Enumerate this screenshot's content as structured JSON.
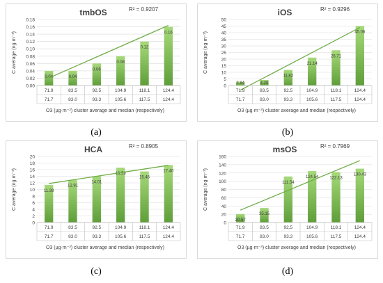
{
  "colors": {
    "bar_top": "#a6d97a",
    "bar_bottom": "#5f9e3a",
    "trend": "#70ad47",
    "grid": "#d9d9d9",
    "text": "#404040"
  },
  "captions": [
    "(a)",
    "(b)",
    "(c)",
    "(d)"
  ],
  "chart_data": [
    {
      "type": "bar",
      "title": "tmbOS",
      "r2": "R² = 0.9207",
      "ylabel": "C average (ng·m⁻³)",
      "xlabel": "O3 (µg·m⁻³) cluster average and median (respectively)",
      "categories": [
        "71.9",
        "83.5",
        "92.5",
        "104.9",
        "118.1",
        "124.4"
      ],
      "categories2": [
        "71.7",
        "83.0",
        "93.3",
        "105.6",
        "117.5",
        "124.4"
      ],
      "values": [
        0.04,
        0.04,
        0.06,
        0.08,
        0.12,
        0.16
      ],
      "labels": [
        "0.04",
        "0.04",
        "0.06",
        "0.08",
        "0.12",
        "0.16"
      ],
      "ylim": [
        0,
        0.18
      ],
      "yticks": [
        "0.00",
        "0.02",
        "0.04",
        "0.06",
        "0.08",
        "0.10",
        "0.12",
        "0.14",
        "0.16",
        "0.18"
      ],
      "trend": [
        0.0205,
        0.1639
      ]
    },
    {
      "type": "bar",
      "title": "iOS",
      "r2": "R² = 0.9296",
      "ylabel": "C average (ng·m⁻³)",
      "xlabel": "O3 (µg·m⁻³) cluster average and median (respectively)",
      "categories": [
        "71.9",
        "83.5",
        "92.5",
        "104.9",
        "118.1",
        "124.4"
      ],
      "categories2": [
        "71.7",
        "83.0",
        "93.3",
        "105.6",
        "117.5",
        "124.4"
      ],
      "values": [
        2.84,
        4.2,
        11.82,
        21.14,
        26.71,
        45.06
      ],
      "labels": [
        "2.84",
        "4.20",
        "11.82",
        "21.14",
        "26.71",
        "45.06"
      ],
      "ylim": [
        0,
        50
      ],
      "yticks": [
        "0",
        "5",
        "10",
        "15",
        "20",
        "25",
        "30",
        "35",
        "40",
        "45",
        "50"
      ],
      "trend": [
        -3.5,
        43.9
      ]
    },
    {
      "type": "bar",
      "title": "HCA",
      "r2": "R² = 0.8905",
      "ylabel": "C average (ng·m⁻³)",
      "xlabel": "O3 (µg·m⁻³) cluster average and median (respectively)",
      "categories": [
        "71.9",
        "83.5",
        "92.5",
        "104.9",
        "118.1",
        "124.4"
      ],
      "categories2": [
        "71.7",
        "83.0",
        "93.3",
        "105.6",
        "117.5",
        "124.4"
      ],
      "values": [
        11.39,
        12.91,
        14.01,
        16.59,
        15.46,
        17.4
      ],
      "labels": [
        "11.39",
        "12.91",
        "14.01",
        "16.59",
        "15.46",
        "17.40"
      ],
      "ylim": [
        0,
        20
      ],
      "yticks": [
        "0",
        "2",
        "4",
        "6",
        "8",
        "10",
        "12",
        "14",
        "16",
        "18",
        "20"
      ],
      "trend": [
        11.8,
        17.3
      ]
    },
    {
      "type": "bar",
      "title": "msOS",
      "r2": "R² = 0.7969",
      "ylabel": "C average (ng·m⁻³)",
      "xlabel": "O3 (µg·m⁻³) cluster average and median (respectively)",
      "categories": [
        "71.9",
        "83.5",
        "92.5",
        "104.9",
        "118.1",
        "124.4"
      ],
      "categories2": [
        "71.7",
        "83.0",
        "93.3",
        "105.6",
        "117.5",
        "124.4"
      ],
      "values": [
        20.57,
        35.15,
        111.54,
        124.54,
        122.13,
        130.43
      ],
      "labels": [
        "20.57",
        "35.15",
        "111.54",
        "124.54",
        "122.13",
        "130.43"
      ],
      "ylim": [
        0,
        160
      ],
      "yticks": [
        "0",
        "20",
        "40",
        "60",
        "80",
        "100",
        "120",
        "140",
        "160"
      ],
      "trend": [
        30,
        150
      ]
    }
  ]
}
